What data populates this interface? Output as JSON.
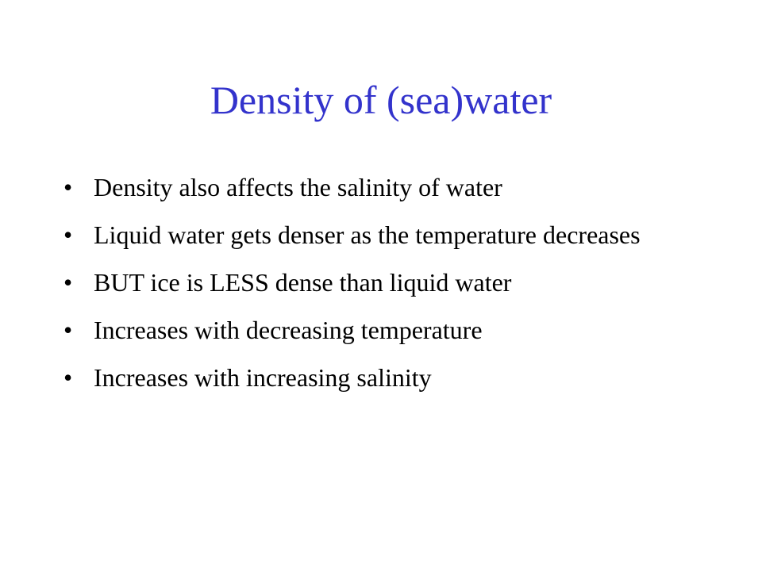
{
  "slide": {
    "title": "Density of (sea)water",
    "bullets": [
      "Density also affects the salinity of water",
      "Liquid water gets denser as the temperature decreases",
      "BUT ice is LESS dense than liquid water",
      "Increases with decreasing temperature",
      "Increases with increasing salinity"
    ]
  }
}
